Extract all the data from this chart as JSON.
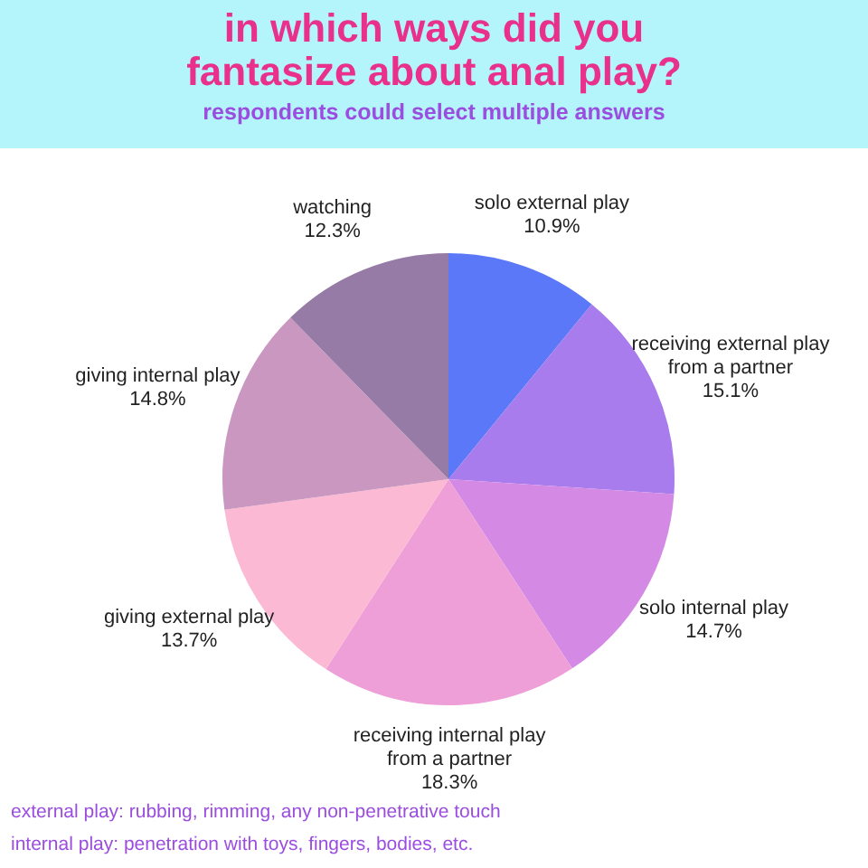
{
  "chart_data": {
    "type": "pie",
    "title": "in which ways did you fantasize about anal play?",
    "subtitle": "respondents could select multiple answers",
    "categories": [
      "solo external play",
      "receiving external play from a partner",
      "solo internal play",
      "receiving internal play from a partner",
      "giving external play",
      "giving internal play",
      "watching"
    ],
    "values": [
      10.9,
      15.1,
      14.7,
      18.3,
      13.7,
      14.8,
      12.3
    ],
    "value_labels": [
      "10.9%",
      "15.1%",
      "14.7%",
      "18.3%",
      "13.7%",
      "14.8%",
      "12.3%"
    ],
    "colors": [
      "#5a78f7",
      "#a87cec",
      "#d48ae4",
      "#ee9fd8",
      "#fbb9d4",
      "#c997bf",
      "#967ba6"
    ],
    "legend": false,
    "annotations": [
      "external play: rubbing, rimming, any non-penetrative touch",
      "internal play: penetration with toys, fingers, bodies, etc."
    ]
  }
}
